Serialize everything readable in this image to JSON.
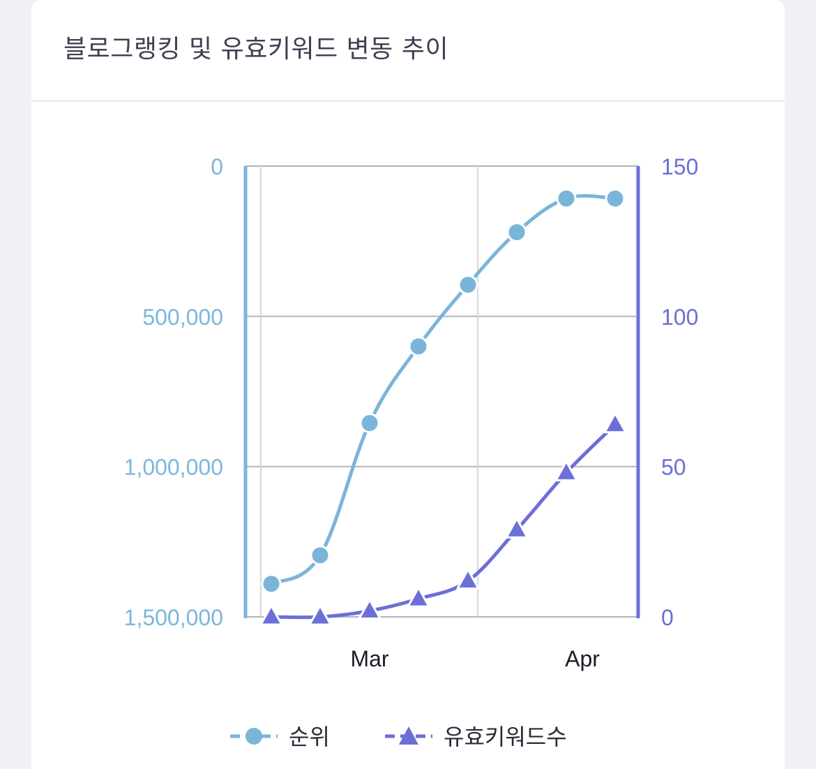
{
  "card": {
    "title": "블로그랭킹 및 유효키워드 변동 추이"
  },
  "colors": {
    "rank": "#7ab5d9",
    "keywords": "#6b6fd6",
    "grid": "#b4b4b8",
    "background": "#f0f0f6"
  },
  "chart_data": {
    "type": "line",
    "title": "블로그랭킹 및 유효키워드 변동 추이",
    "x_tick_labels": [
      "Mar",
      "Apr"
    ],
    "grid": true,
    "legend_position": "bottom",
    "y_left": {
      "ticks": [
        "0",
        "500,000",
        "1,000,000",
        "1,500,000"
      ],
      "range": [
        1500000,
        0
      ],
      "reversed": true
    },
    "y_right": {
      "ticks": [
        "150",
        "100",
        "50",
        "0"
      ],
      "range": [
        0,
        150
      ]
    },
    "series": [
      {
        "name": "순위",
        "axis": "left",
        "marker": "circle",
        "line_style": "dashed-smooth",
        "values": [
          1390000,
          1295000,
          855000,
          600000,
          395000,
          220000,
          108000,
          108000
        ]
      },
      {
        "name": "유효키워드수",
        "axis": "right",
        "marker": "triangle",
        "line_style": "dashed-smooth",
        "values": [
          0,
          0,
          2,
          6,
          12,
          29,
          48,
          64
        ]
      }
    ]
  },
  "legend": [
    {
      "label": "순위",
      "icon": "circle-marker-icon"
    },
    {
      "label": "유효키워드수",
      "icon": "triangle-marker-icon"
    }
  ]
}
